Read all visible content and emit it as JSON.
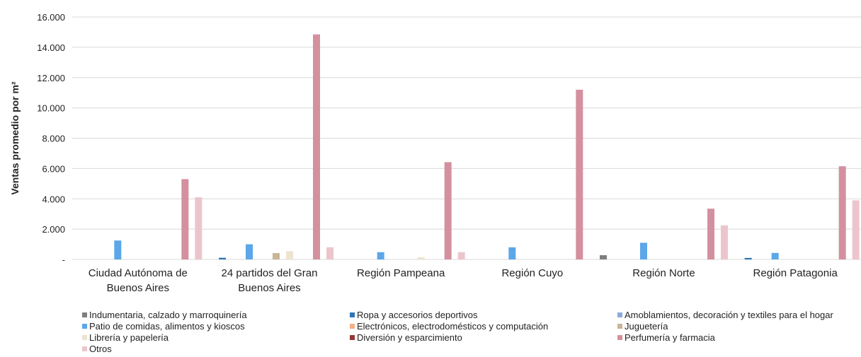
{
  "chart_data": {
    "type": "bar",
    "ylabel": "Ventas promedio por m²",
    "xlabel": "",
    "ylim": [
      0,
      16000
    ],
    "ytick_values": [
      0,
      2000,
      4000,
      6000,
      8000,
      10000,
      12000,
      14000,
      16000
    ],
    "ytick_labels": [
      "-",
      "2.000",
      "4.000",
      "6.000",
      "8.000",
      "10.000",
      "12.000",
      "14.000",
      "16.000"
    ],
    "grid": true,
    "legend_position": "bottom",
    "categories": [
      [
        "Ciudad Autónoma de",
        "Buenos Aires"
      ],
      [
        "24 partidos del Gran",
        "Buenos Aires"
      ],
      [
        "Región Pampeana"
      ],
      [
        "Región Cuyo"
      ],
      [
        "Región Norte"
      ],
      [
        "Región Patagonia"
      ]
    ],
    "series": [
      {
        "name": "Indumentaria, calzado y marroquinería",
        "color": "#7f7f7f",
        "values": [
          0,
          0,
          0,
          0,
          280,
          0
        ]
      },
      {
        "name": "Ropa y accesorios deportivos",
        "color": "#2e75b6",
        "values": [
          0,
          110,
          0,
          0,
          0,
          100
        ]
      },
      {
        "name": "Amoblamientos, decoración y textiles para el hogar",
        "color": "#8faadc",
        "values": [
          0,
          0,
          0,
          0,
          0,
          0
        ]
      },
      {
        "name": "Patio de comidas, alimentos y kioscos",
        "color": "#5ba7e8",
        "values": [
          1250,
          1000,
          480,
          800,
          1100,
          430
        ]
      },
      {
        "name": "Electrónicos, electrodomésticos y computación",
        "color": "#f4b183",
        "values": [
          0,
          0,
          0,
          0,
          0,
          0
        ]
      },
      {
        "name": "Juguetería",
        "color": "#c9b597",
        "values": [
          0,
          420,
          0,
          0,
          0,
          0
        ]
      },
      {
        "name": "Librería y papelería",
        "color": "#ede3d1",
        "values": [
          0,
          550,
          150,
          0,
          0,
          0
        ]
      },
      {
        "name": "Diversión y esparcimiento",
        "color": "#953735",
        "values": [
          0,
          0,
          0,
          0,
          0,
          0
        ]
      },
      {
        "name": "Perfumería y farmacia",
        "color": "#d4909f",
        "values": [
          5300,
          14850,
          6420,
          11200,
          3350,
          6150
        ]
      },
      {
        "name": "Otros",
        "color": "#ecc5cc",
        "values": [
          4100,
          800,
          480,
          0,
          2250,
          3900
        ]
      }
    ]
  }
}
